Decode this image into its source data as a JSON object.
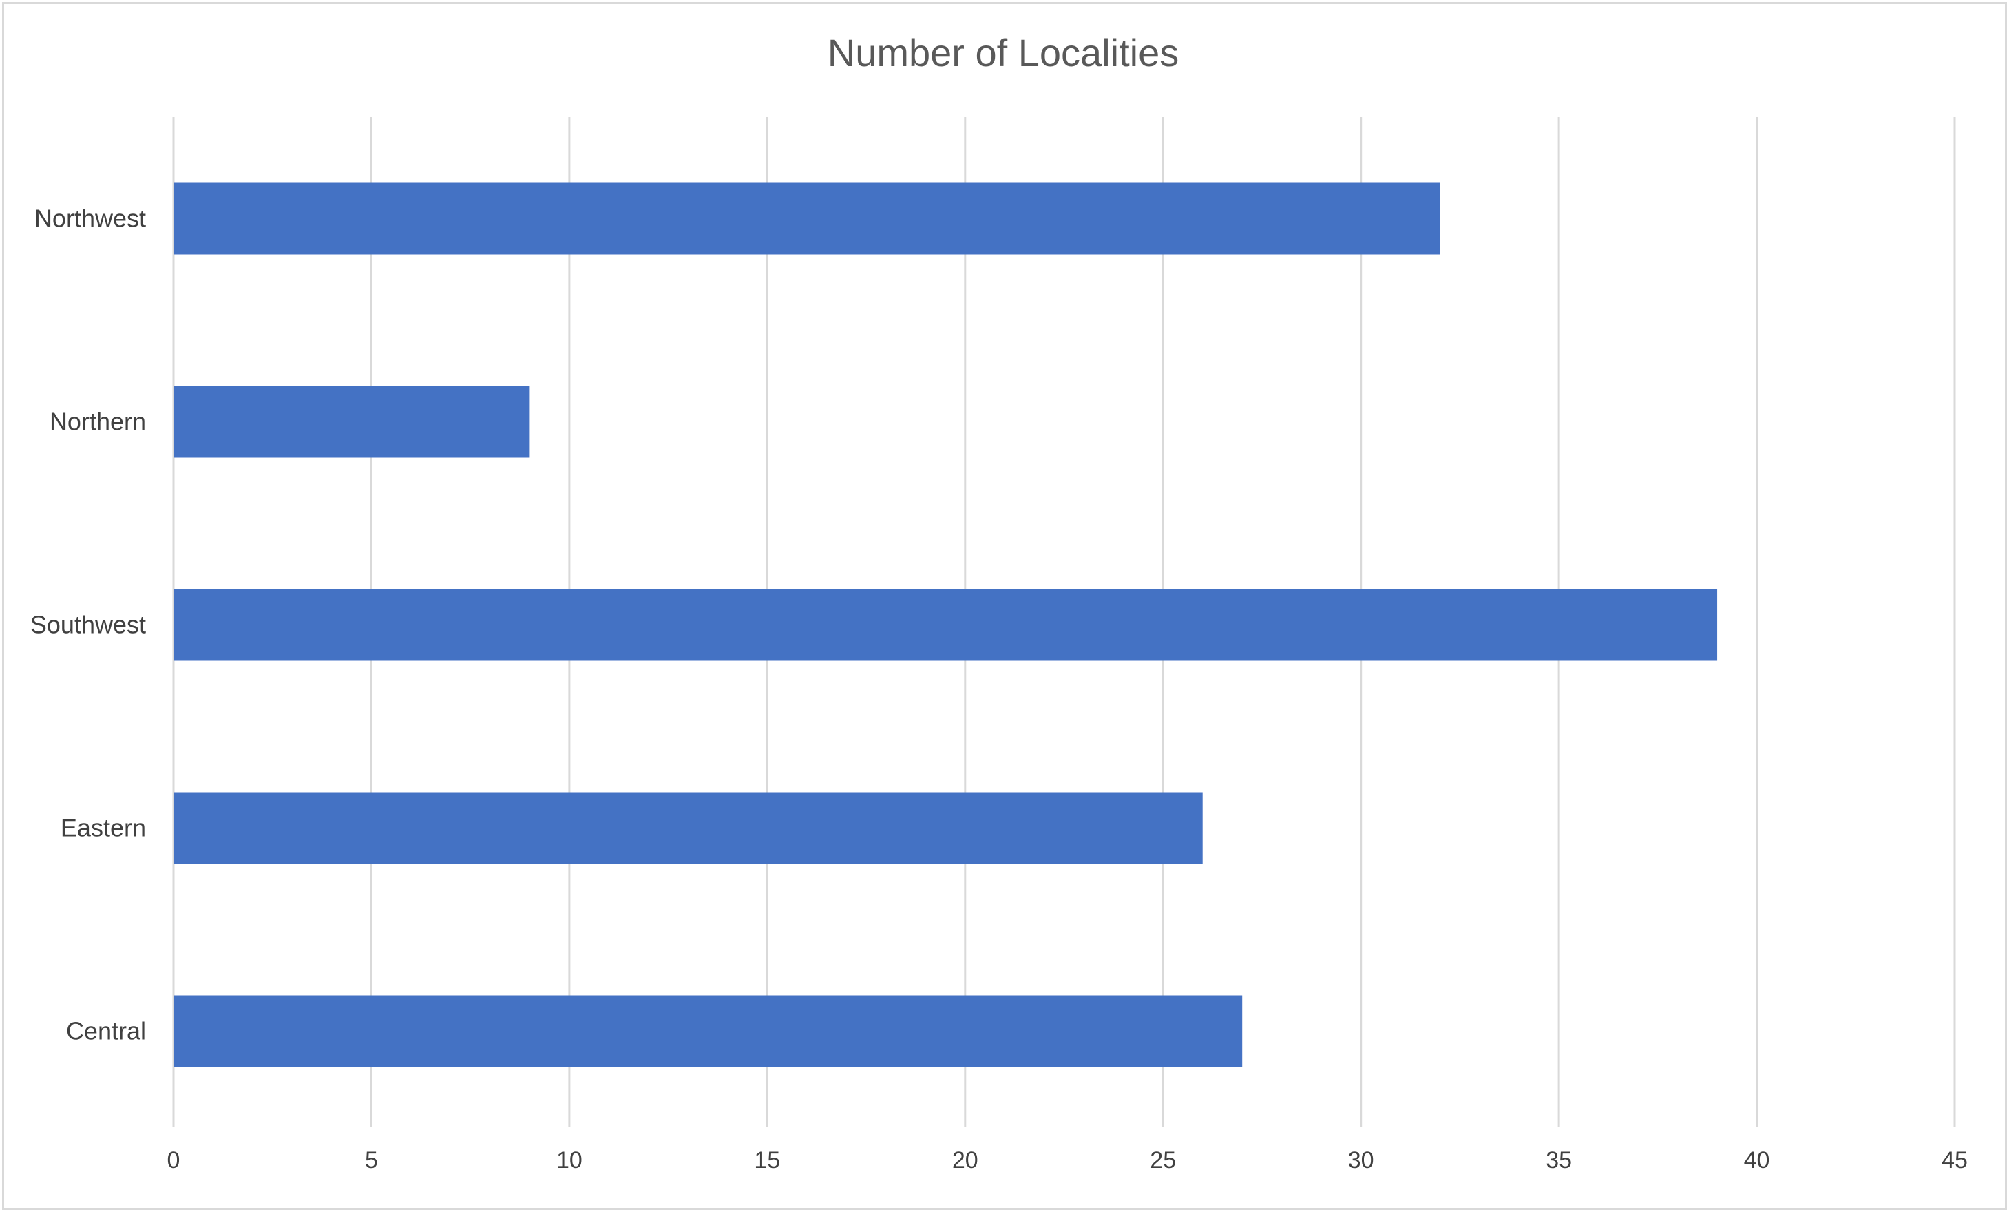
{
  "chart_data": {
    "type": "bar",
    "orientation": "horizontal",
    "title": "Number of Localities",
    "xlabel": "",
    "ylabel": "",
    "categories": [
      "Northwest",
      "Northern",
      "Southwest",
      "Eastern",
      "Central"
    ],
    "values": [
      32,
      9,
      39,
      26,
      27
    ],
    "xlim": [
      0,
      45
    ],
    "x_ticks": [
      "0",
      "5",
      "10",
      "15",
      "20",
      "25",
      "30",
      "35",
      "40",
      "45"
    ],
    "grid": "vertical",
    "legend": "none",
    "bar_color": "#4472C4",
    "grid_color": "#d9d9d9"
  }
}
